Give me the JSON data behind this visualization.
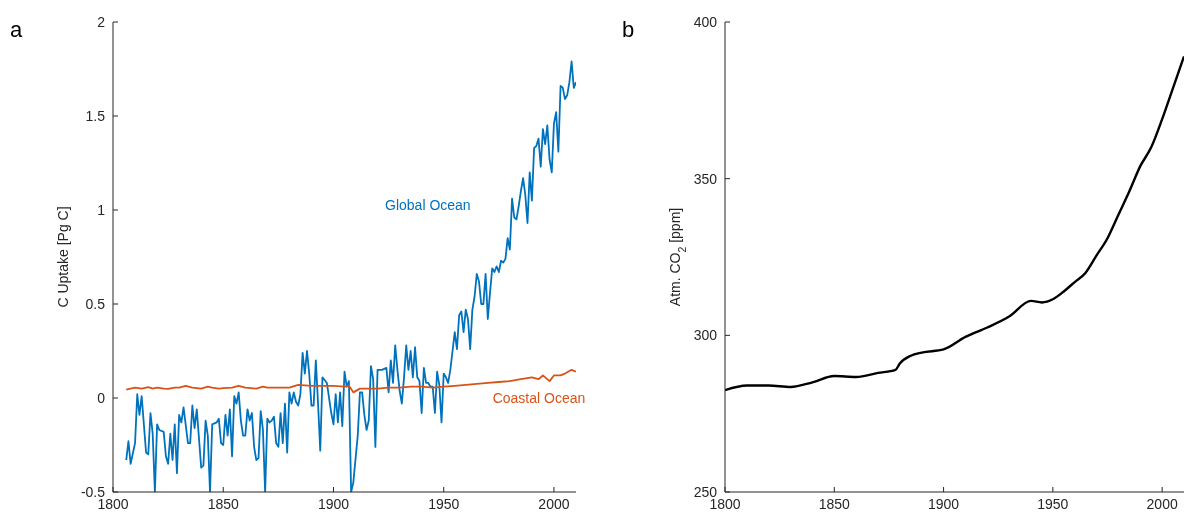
{
  "chart_data": [
    {
      "type": "line",
      "title": "a",
      "ylabel": "C Uptake [Pg C]",
      "xlim": [
        1800,
        2010
      ],
      "xticks": [
        1800,
        1850,
        1900,
        1950,
        2000
      ],
      "ylim": [
        -0.5,
        2
      ],
      "yticks": [
        -0.5,
        0,
        0.5,
        1,
        1.5,
        2
      ],
      "grid": false,
      "series": [
        {
          "name": "Global Ocean",
          "color": "#0072bd",
          "x": [
            1806,
            1807,
            1808,
            1810,
            1811,
            1812,
            1813,
            1815,
            1816,
            1817,
            1818,
            1819,
            1820,
            1821,
            1823,
            1824,
            1825,
            1826,
            1827,
            1828,
            1829,
            1830,
            1831,
            1832,
            1834,
            1835,
            1836,
            1837,
            1838,
            1840,
            1841,
            1842,
            1843,
            1844,
            1845,
            1847,
            1848,
            1849,
            1850,
            1851,
            1852,
            1853,
            1854,
            1855,
            1856,
            1857,
            1858,
            1859,
            1860,
            1861,
            1862,
            1863,
            1864,
            1865,
            1866,
            1867,
            1868,
            1869,
            1870,
            1871,
            1872,
            1873,
            1874,
            1875,
            1876,
            1877,
            1878,
            1879,
            1880,
            1881,
            1882,
            1883,
            1884,
            1885,
            1886,
            1887,
            1888,
            1889,
            1890,
            1891,
            1892,
            1893,
            1894,
            1895,
            1897,
            1899,
            1900,
            1901,
            1902,
            1903,
            1904,
            1905,
            1906,
            1907,
            1908,
            1909,
            1911,
            1912,
            1913,
            1914,
            1915,
            1916,
            1917,
            1918,
            1919,
            1920,
            1922,
            1924,
            1925,
            1926,
            1927,
            1928,
            1929,
            1930,
            1931,
            1932,
            1933,
            1934,
            1935,
            1936,
            1937,
            1938,
            1939,
            1940,
            1941,
            1942,
            1943,
            1944,
            1945,
            1946,
            1947,
            1948,
            1949,
            1950,
            1951,
            1952,
            1953,
            1954,
            1955,
            1956,
            1957,
            1958,
            1959,
            1960,
            1961,
            1962,
            1963,
            1964,
            1965,
            1966,
            1967,
            1968,
            1969,
            1970,
            1971,
            1972,
            1973,
            1974,
            1975,
            1976,
            1977,
            1978,
            1979,
            1980,
            1981,
            1982,
            1983,
            1984,
            1985,
            1986,
            1987,
            1988,
            1989,
            1990,
            1991,
            1992,
            1993,
            1994,
            1995,
            1996,
            1997,
            1998,
            1999,
            2000,
            2001,
            2002,
            2003,
            2004,
            2005,
            2006,
            2007,
            2008,
            2009,
            2010
          ],
          "values": [
            -0.33,
            -0.23,
            -0.35,
            -0.24,
            0.02,
            -0.09,
            0.01,
            -0.29,
            -0.3,
            -0.08,
            -0.19,
            -0.5,
            -0.14,
            -0.17,
            -0.18,
            -0.31,
            -0.35,
            -0.19,
            -0.33,
            -0.14,
            -0.4,
            -0.09,
            -0.13,
            -0.05,
            -0.24,
            -0.24,
            -0.04,
            -0.16,
            -0.06,
            -0.37,
            -0.36,
            -0.12,
            -0.2,
            -0.5,
            -0.14,
            -0.13,
            -0.11,
            -0.24,
            -0.25,
            -0.09,
            -0.2,
            -0.06,
            -0.31,
            0.01,
            -0.03,
            0.03,
            -0.12,
            -0.2,
            -0.2,
            -0.06,
            -0.12,
            -0.08,
            -0.26,
            -0.33,
            -0.32,
            -0.07,
            -0.17,
            -0.5,
            -0.11,
            -0.13,
            -0.12,
            -0.1,
            -0.24,
            -0.26,
            -0.08,
            -0.24,
            -0.03,
            -0.29,
            0.03,
            -0.03,
            0.03,
            -0.02,
            -0.04,
            0.02,
            0.24,
            0.13,
            0.25,
            0.13,
            -0.04,
            -0.04,
            0.2,
            -0.03,
            -0.28,
            0.11,
            0.08,
            -0.08,
            -0.14,
            0.02,
            -0.13,
            0.03,
            -0.15,
            0.14,
            0.06,
            0.09,
            -0.5,
            -0.45,
            -0.2,
            0.03,
            0.03,
            -0.09,
            -0.17,
            -0.12,
            0.17,
            0.1,
            -0.26,
            0.15,
            0.15,
            0.16,
            0.03,
            0.2,
            0.08,
            0.28,
            0.15,
            0.04,
            -0.03,
            0.11,
            0.28,
            0.15,
            0.25,
            0.11,
            0.27,
            0.11,
            0.09,
            -0.08,
            0.16,
            0.08,
            0.08,
            0.06,
            0.06,
            -0.08,
            0.14,
            0.07,
            -0.13,
            0.13,
            0.11,
            0.08,
            0.15,
            0.25,
            0.35,
            0.26,
            0.44,
            0.46,
            0.35,
            0.47,
            0.42,
            0.26,
            0.47,
            0.54,
            0.66,
            0.62,
            0.5,
            0.5,
            0.66,
            0.42,
            0.56,
            0.69,
            0.67,
            0.7,
            0.67,
            0.73,
            0.72,
            0.74,
            0.85,
            0.79,
            1.06,
            0.96,
            0.95,
            1.02,
            1.1,
            1.17,
            1.08,
            0.93,
            1.2,
            1.05,
            1.33,
            1.34,
            1.38,
            1.23,
            1.43,
            1.35,
            1.45,
            1.27,
            1.2,
            1.46,
            1.52,
            1.31,
            1.66,
            1.65,
            1.59,
            1.61,
            1.68,
            1.79,
            1.65,
            1.68
          ]
        },
        {
          "name": "Coastal Ocean",
          "color": "#d95319",
          "x": [
            1806,
            1808,
            1810,
            1813,
            1816,
            1818,
            1820,
            1823,
            1825,
            1828,
            1830,
            1833,
            1836,
            1840,
            1843,
            1845,
            1848,
            1850,
            1854,
            1857,
            1860,
            1865,
            1868,
            1870,
            1875,
            1880,
            1884,
            1890,
            1895,
            1900,
            1905,
            1907,
            1909,
            1912,
            1915,
            1920,
            1925,
            1930,
            1935,
            1940,
            1945,
            1950,
            1955,
            1960,
            1965,
            1970,
            1975,
            1980,
            1985,
            1990,
            1993,
            1995,
            1998,
            2000,
            2003,
            2005,
            2008,
            2010
          ],
          "values": [
            0.045,
            0.05,
            0.055,
            0.05,
            0.058,
            0.05,
            0.055,
            0.05,
            0.048,
            0.055,
            0.055,
            0.065,
            0.055,
            0.05,
            0.06,
            0.055,
            0.05,
            0.052,
            0.055,
            0.065,
            0.055,
            0.05,
            0.06,
            0.055,
            0.055,
            0.055,
            0.07,
            0.065,
            0.065,
            0.065,
            0.06,
            0.065,
            0.03,
            0.05,
            0.05,
            0.05,
            0.055,
            0.055,
            0.06,
            0.06,
            0.055,
            0.06,
            0.065,
            0.07,
            0.075,
            0.08,
            0.085,
            0.09,
            0.1,
            0.11,
            0.1,
            0.12,
            0.09,
            0.12,
            0.12,
            0.13,
            0.15,
            0.14
          ]
        }
      ]
    },
    {
      "type": "line",
      "title": "b",
      "ylabel": "Atm. CO$_{2}$ [ppm]",
      "xlim": [
        1800,
        2010
      ],
      "xticks": [
        1800,
        1850,
        1900,
        1950,
        2000
      ],
      "ylim": [
        250,
        400
      ],
      "yticks": [
        250,
        300,
        350,
        400
      ],
      "grid": false,
      "series": [
        {
          "color": "#000000",
          "x": [
            1800,
            1810,
            1820,
            1830,
            1840,
            1850,
            1860,
            1870,
            1878,
            1880,
            1885,
            1890,
            1900,
            1910,
            1920,
            1930,
            1940,
            1945,
            1950,
            1955,
            1960,
            1965,
            1970,
            1975,
            1980,
            1985,
            1990,
            1995,
            2000,
            2005,
            2010
          ],
          "values": [
            282.5,
            284,
            284,
            283.5,
            285,
            287,
            286.7,
            288,
            289,
            291,
            293.5,
            294.5,
            295.5,
            299.5,
            302.5,
            306,
            311,
            310.5,
            311.5,
            314,
            317,
            320,
            325.5,
            331,
            338.5,
            346,
            354,
            360,
            369,
            379,
            389
          ]
        }
      ]
    }
  ]
}
